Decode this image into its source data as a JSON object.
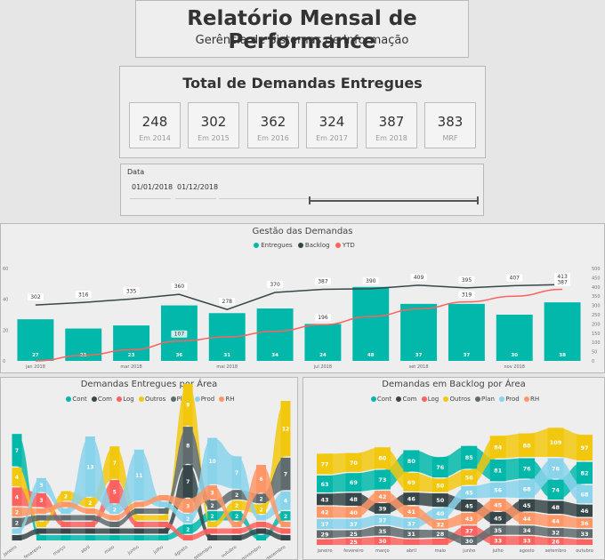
{
  "report": {
    "title": "Relatório Mensal de Performance",
    "subtitle": "Gerência de Sistemas de Informação"
  },
  "totals": {
    "title": "Total de Demandas Entregues",
    "cards": [
      {
        "value": "248",
        "label": "Em 2014"
      },
      {
        "value": "302",
        "label": "Em 2015"
      },
      {
        "value": "362",
        "label": "Em 2016"
      },
      {
        "value": "324",
        "label": "Em 2017"
      },
      {
        "value": "387",
        "label": "Em 2018"
      },
      {
        "value": "383",
        "label": "MRF"
      }
    ]
  },
  "date_filter": {
    "label": "Data",
    "start": "01/01/2018",
    "end": "01/12/2018"
  },
  "colors": {
    "teal": "#01b8aa",
    "dark": "#374649",
    "red": "#fd625e",
    "yellow": "#f2c80f",
    "gray": "#5f6b6d",
    "lightblue": "#8ad4eb",
    "orange": "#fe9666"
  },
  "chart_data": [
    {
      "type": "bar",
      "title": "Gestão das Demandas",
      "legend": [
        "Entregues",
        "Backlog",
        "YTD"
      ],
      "x_ticks": [
        "jan 2018",
        "mar 2018",
        "mai 2018",
        "jul 2018",
        "set 2018",
        "nov 2018"
      ],
      "y_left_ticks": [
        "0",
        "20",
        "40",
        "60"
      ],
      "y_right_ticks": [
        "0",
        "50",
        "100",
        "150",
        "200",
        "250",
        "300",
        "350",
        "400",
        "450",
        "500"
      ],
      "y_left_lim": [
        0,
        60
      ],
      "y_right_lim": [
        0,
        500
      ],
      "series": [
        {
          "name": "Entregues",
          "axis": "left",
          "values": [
            27,
            21,
            23,
            36,
            31,
            34,
            24,
            48,
            37,
            37,
            30,
            38
          ]
        },
        {
          "name": "Backlog",
          "axis": "right",
          "values": [
            302,
            316,
            335,
            360,
            278,
            370,
            387,
            390,
            409,
            395,
            407,
            413
          ]
        },
        {
          "name": "YTD",
          "axis": "right",
          "values": [
            0,
            30,
            60,
            107,
            130,
            160,
            196,
            240,
            281,
            319,
            350,
            387
          ]
        }
      ],
      "backlog_labels": [
        "302",
        "316",
        "335",
        "360",
        "278",
        "370",
        "387",
        "390",
        "409",
        "395",
        "407",
        "413"
      ],
      "ytd_labels": [
        "107",
        "196",
        "319",
        "387"
      ]
    },
    {
      "type": "area",
      "title": "Demandas Entregues por Área",
      "legend": [
        "Cont",
        "Com",
        "Log",
        "Outros",
        "Plan",
        "Prod",
        "RH"
      ],
      "categories": [
        "janeiro",
        "fevereiro",
        "março",
        "abril",
        "maio",
        "junho",
        "julho",
        "agosto",
        "setembro",
        "outubro",
        "novembro",
        "dezembro"
      ],
      "series": [
        {
          "name": "Cont",
          "values": [
            7,
            1,
            1,
            1,
            1,
            1,
            1,
            2,
            2,
            2,
            1,
            2
          ]
        },
        {
          "name": "Com",
          "values": [
            1,
            1,
            1,
            1,
            1,
            1,
            1,
            7,
            1,
            1,
            1,
            1
          ]
        },
        {
          "name": "Log",
          "values": [
            4,
            3,
            1,
            1,
            5,
            1,
            1,
            1,
            1,
            1,
            1,
            1
          ]
        },
        {
          "name": "Outros",
          "values": [
            4,
            1,
            2,
            2,
            7,
            1,
            1,
            9,
            1,
            2,
            2,
            12
          ]
        },
        {
          "name": "Plan",
          "values": [
            2,
            1,
            1,
            1,
            1,
            1,
            1,
            8,
            2,
            2,
            2,
            7
          ]
        },
        {
          "name": "Prod",
          "values": [
            1,
            3,
            1,
            13,
            2,
            11,
            1,
            2,
            10,
            7,
            1,
            4
          ]
        },
        {
          "name": "RH",
          "values": [
            2,
            1,
            1,
            1,
            1,
            1,
            1,
            3,
            3,
            1,
            6,
            1
          ]
        }
      ],
      "labels": [
        [
          "7",
          "4",
          "4",
          "2",
          "1",
          "2"
        ],
        [
          "5",
          "3",
          "1"
        ],
        [
          "2",
          "3"
        ],
        [
          "5",
          "13"
        ],
        [
          "5",
          "7",
          "2"
        ],
        [
          "2",
          "11"
        ],
        [
          "2"
        ],
        [
          "9",
          "8",
          "7",
          "3"
        ],
        [
          "10",
          "2",
          "3"
        ],
        [
          "7",
          "2"
        ],
        [
          "6"
        ],
        [
          "12",
          "7",
          "4"
        ]
      ]
    },
    {
      "type": "area",
      "title": "Demandas em Backlog por Área",
      "legend": [
        "Cont",
        "Com",
        "Log",
        "Outros",
        "Plan",
        "Prod",
        "RH"
      ],
      "categories": [
        "janeiro",
        "fevereiro",
        "março",
        "abril",
        "maio",
        "junho",
        "julho",
        "agosto",
        "setembro",
        "outubro"
      ],
      "series": [
        {
          "name": "Cont",
          "values": [
            63,
            69,
            73,
            80,
            76,
            85,
            81,
            76,
            74,
            82
          ]
        },
        {
          "name": "Com",
          "values": [
            43,
            48,
            39,
            46,
            50,
            45,
            45,
            45,
            48,
            46
          ]
        },
        {
          "name": "Log",
          "values": [
            21,
            25,
            30,
            21,
            23,
            37,
            33,
            33,
            26,
            21
          ]
        },
        {
          "name": "Outros",
          "values": [
            77,
            70,
            80,
            69,
            50,
            56,
            84,
            88,
            109,
            97
          ]
        },
        {
          "name": "Plan",
          "values": [
            29,
            25,
            35,
            31,
            28,
            30,
            35,
            34,
            32,
            33
          ]
        },
        {
          "name": "Prod",
          "values": [
            37,
            37,
            37,
            37,
            40,
            45,
            56,
            68,
            76,
            68
          ]
        },
        {
          "name": "RH",
          "values": [
            42,
            40,
            42,
            41,
            32,
            43,
            45,
            44,
            44,
            36
          ]
        }
      ]
    }
  ]
}
